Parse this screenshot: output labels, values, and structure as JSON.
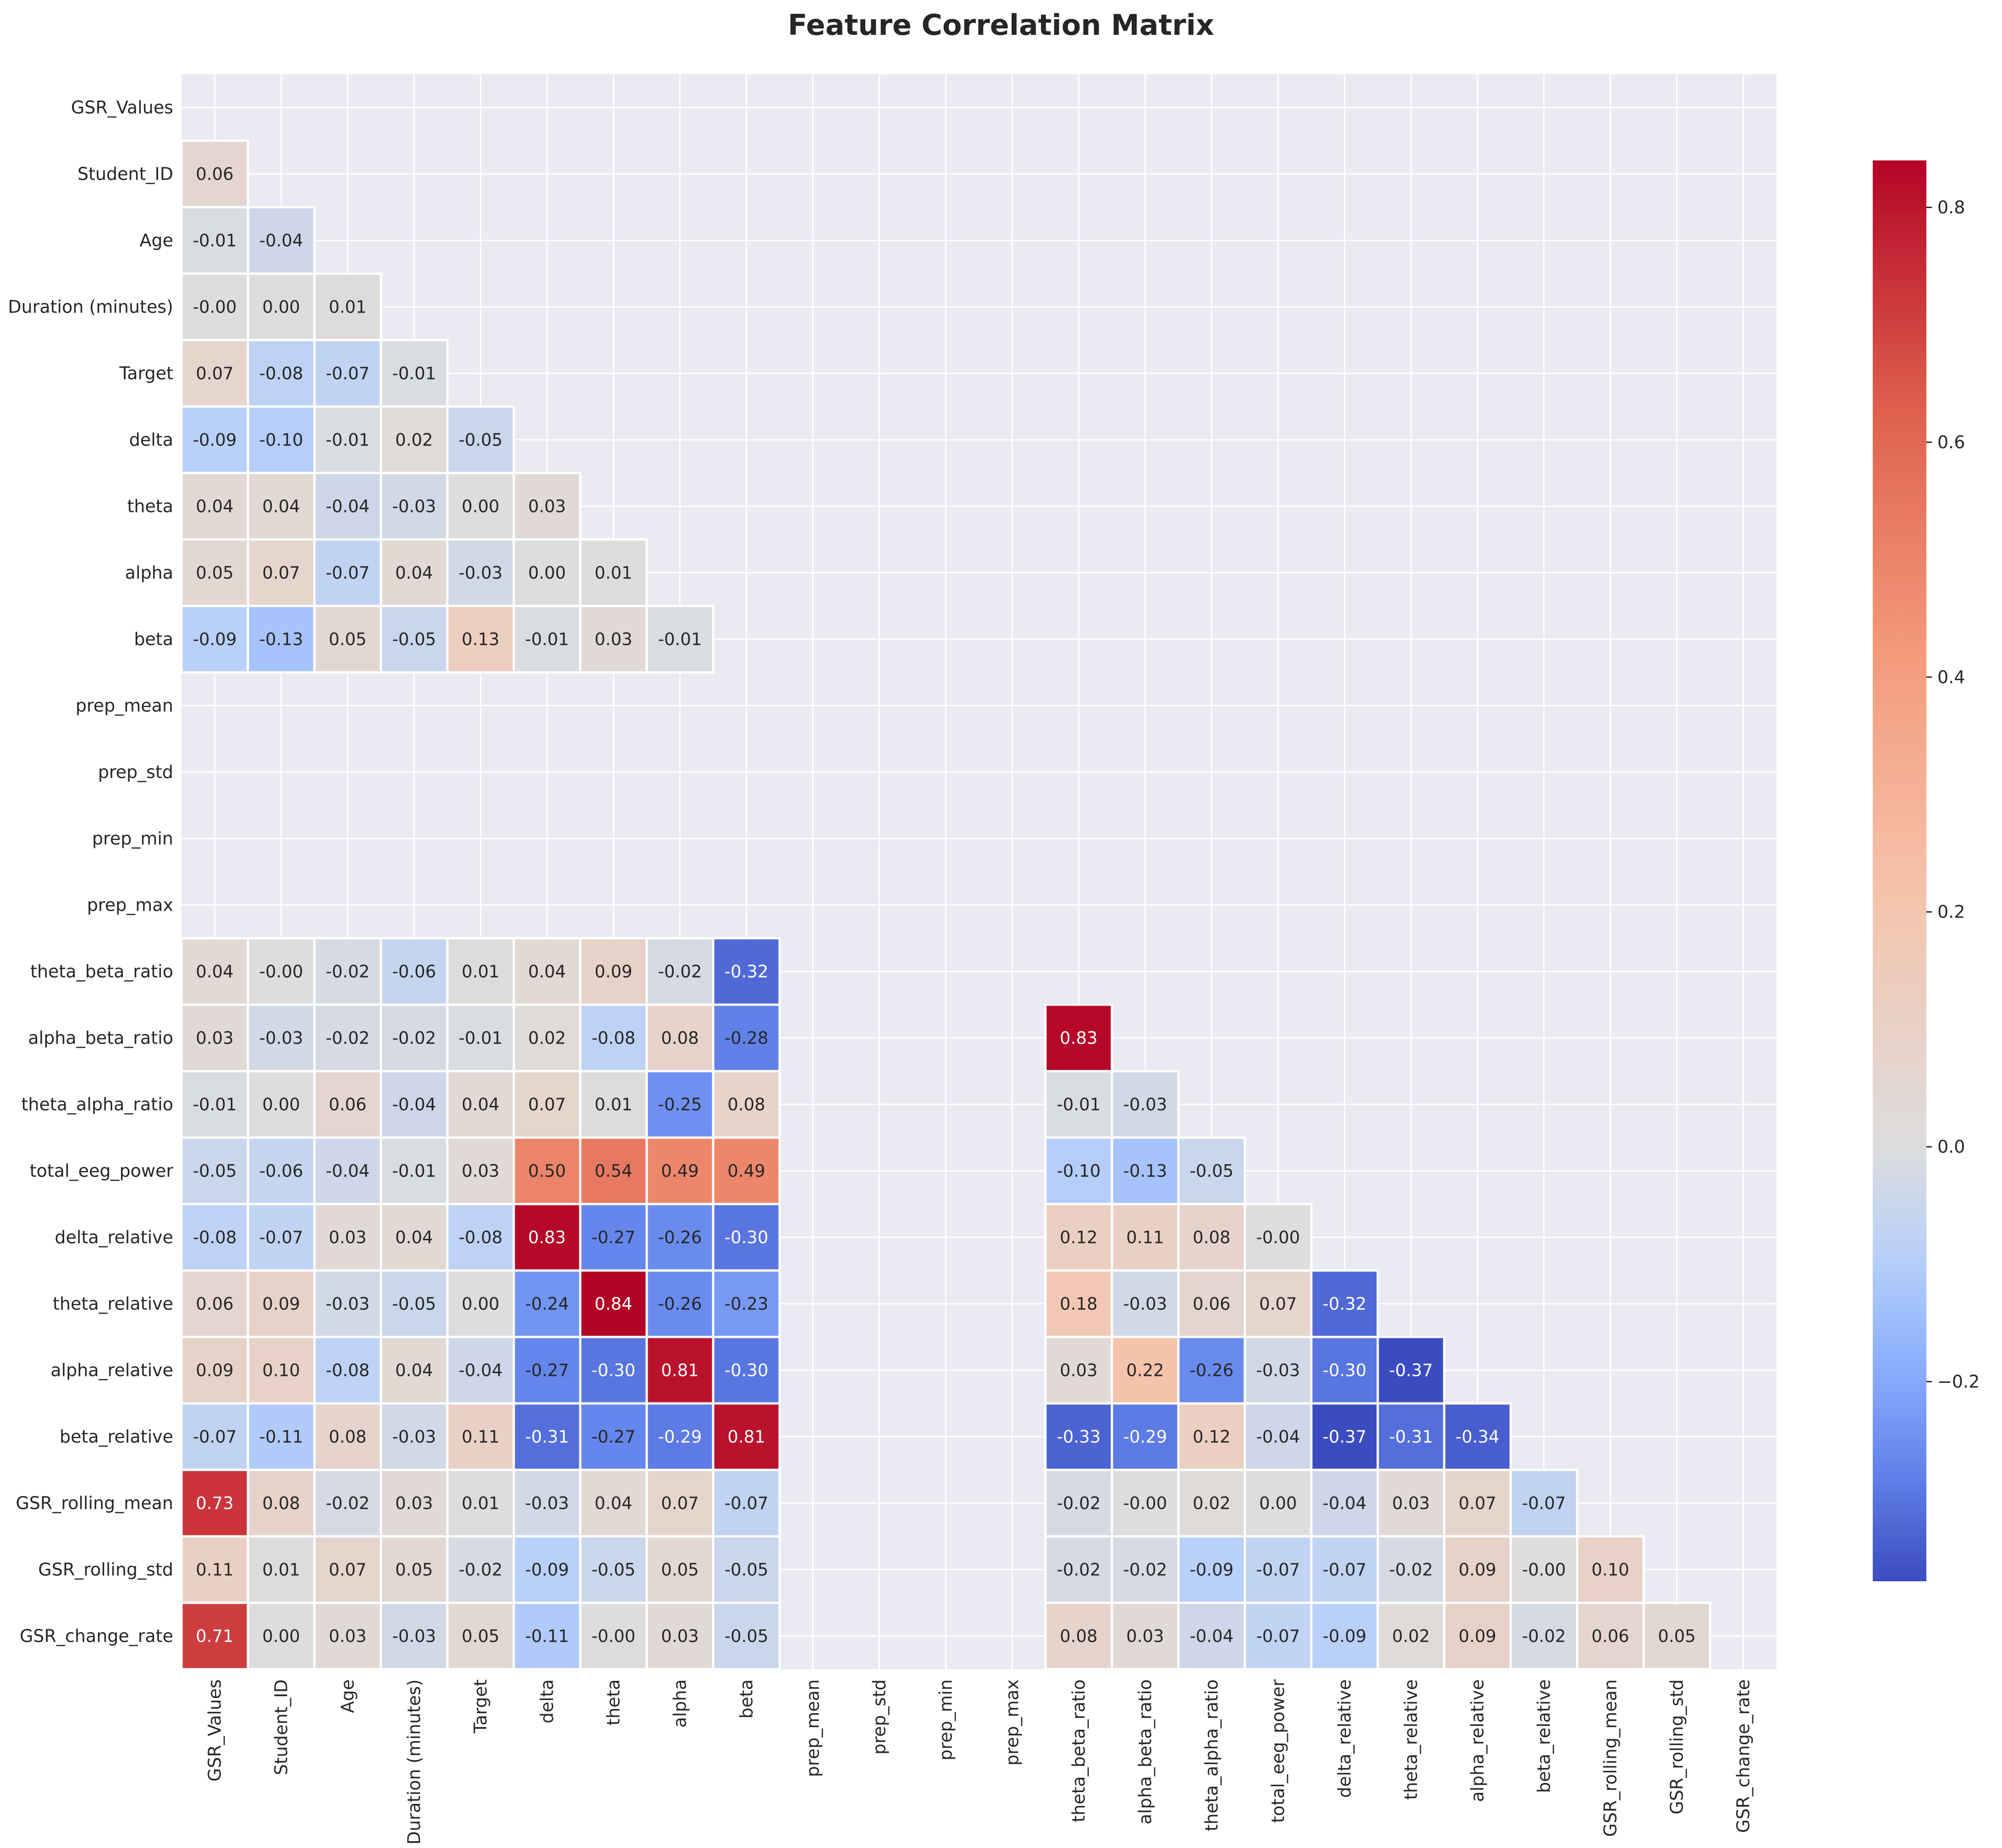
{
  "chart_data": {
    "type": "heatmap",
    "title": "Feature Correlation Matrix",
    "labels": [
      "GSR_Values",
      "Student_ID",
      "Age",
      "Duration (minutes)",
      "Target",
      "delta",
      "theta",
      "alpha",
      "beta",
      "prep_mean",
      "prep_std",
      "prep_min",
      "prep_max",
      "theta_beta_ratio",
      "alpha_beta_ratio",
      "theta_alpha_ratio",
      "total_eeg_power",
      "delta_relative",
      "theta_relative",
      "alpha_relative",
      "beta_relative",
      "GSR_rolling_mean",
      "GSR_rolling_std",
      "GSR_change_rate"
    ],
    "mask": "upper-triangle-including-diagonal",
    "empty_rows_cols": [
      "prep_mean",
      "prep_std",
      "prep_min",
      "prep_max"
    ],
    "lower_triangle": [
      [],
      [
        0.06
      ],
      [
        -0.01,
        -0.04
      ],
      [
        -0.0,
        0.0,
        0.01
      ],
      [
        0.07,
        -0.08,
        -0.07,
        -0.01
      ],
      [
        -0.09,
        -0.1,
        -0.01,
        0.02,
        -0.05
      ],
      [
        0.04,
        0.04,
        -0.04,
        -0.03,
        0.0,
        0.03
      ],
      [
        0.05,
        0.07,
        -0.07,
        0.04,
        -0.03,
        0.0,
        0.01
      ],
      [
        -0.09,
        -0.13,
        0.05,
        -0.05,
        0.13,
        -0.01,
        0.03,
        -0.01
      ],
      [
        null,
        null,
        null,
        null,
        null,
        null,
        null,
        null,
        null
      ],
      [
        null,
        null,
        null,
        null,
        null,
        null,
        null,
        null,
        null,
        null
      ],
      [
        null,
        null,
        null,
        null,
        null,
        null,
        null,
        null,
        null,
        null,
        null
      ],
      [
        null,
        null,
        null,
        null,
        null,
        null,
        null,
        null,
        null,
        null,
        null,
        null
      ],
      [
        0.04,
        -0.0,
        -0.02,
        -0.06,
        0.01,
        0.04,
        0.09,
        -0.02,
        -0.32,
        null,
        null,
        null,
        null
      ],
      [
        0.03,
        -0.03,
        -0.02,
        -0.02,
        -0.01,
        0.02,
        -0.08,
        0.08,
        -0.28,
        null,
        null,
        null,
        null,
        0.83
      ],
      [
        -0.01,
        0.0,
        0.06,
        -0.04,
        0.04,
        0.07,
        0.01,
        -0.25,
        0.08,
        null,
        null,
        null,
        null,
        -0.01,
        -0.03
      ],
      [
        -0.05,
        -0.06,
        -0.04,
        -0.01,
        0.03,
        0.5,
        0.54,
        0.49,
        0.49,
        null,
        null,
        null,
        null,
        -0.1,
        -0.13,
        -0.05
      ],
      [
        -0.08,
        -0.07,
        0.03,
        0.04,
        -0.08,
        0.83,
        -0.27,
        -0.26,
        -0.3,
        null,
        null,
        null,
        null,
        0.12,
        0.11,
        0.08,
        -0.0
      ],
      [
        0.06,
        0.09,
        -0.03,
        -0.05,
        0.0,
        -0.24,
        0.84,
        -0.26,
        -0.23,
        null,
        null,
        null,
        null,
        0.18,
        -0.03,
        0.06,
        0.07,
        -0.32
      ],
      [
        0.09,
        0.1,
        -0.08,
        0.04,
        -0.04,
        -0.27,
        -0.3,
        0.81,
        -0.3,
        null,
        null,
        null,
        null,
        0.03,
        0.22,
        -0.26,
        -0.03,
        -0.3,
        -0.37
      ],
      [
        -0.07,
        -0.11,
        0.08,
        -0.03,
        0.11,
        -0.31,
        -0.27,
        -0.29,
        0.81,
        null,
        null,
        null,
        null,
        -0.33,
        -0.29,
        0.12,
        -0.04,
        -0.37,
        -0.31,
        -0.34
      ],
      [
        0.73,
        0.08,
        -0.02,
        0.03,
        0.01,
        -0.03,
        0.04,
        0.07,
        -0.07,
        null,
        null,
        null,
        null,
        -0.02,
        -0.0,
        0.02,
        0.0,
        -0.04,
        0.03,
        0.07,
        -0.07
      ],
      [
        0.11,
        0.01,
        0.07,
        0.05,
        -0.02,
        -0.09,
        -0.05,
        0.05,
        -0.05,
        null,
        null,
        null,
        null,
        -0.02,
        -0.02,
        -0.09,
        -0.07,
        -0.07,
        -0.02,
        0.09,
        -0.0,
        0.1
      ],
      [
        0.71,
        0.0,
        0.03,
        -0.03,
        0.05,
        -0.11,
        -0.0,
        0.03,
        -0.05,
        null,
        null,
        null,
        null,
        0.08,
        0.03,
        -0.04,
        -0.07,
        -0.09,
        0.02,
        0.09,
        -0.02,
        0.06,
        0.05
      ]
    ],
    "value_format": "2 decimals",
    "colormap": "coolwarm",
    "center": 0.0,
    "colorbar": {
      "vmin": -0.37,
      "vmax": 0.84,
      "ticks": [
        -0.2,
        0.0,
        0.2,
        0.4,
        0.6,
        0.8
      ],
      "tick_labels": [
        "−0.2",
        "0.0",
        "0.2",
        "0.4",
        "0.6",
        "0.8"
      ],
      "position": "right"
    },
    "grid": true,
    "background_color": "#EAEAF2",
    "cell_border_color": "#FFFFFF"
  }
}
